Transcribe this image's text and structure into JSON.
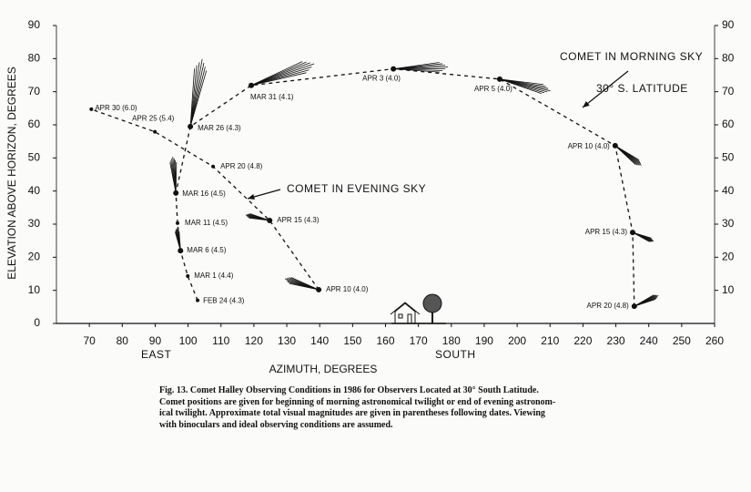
{
  "chart_data": {
    "type": "scatter",
    "x_label": "AZIMUTH, DEGREES",
    "y_label": "ELEVATION ABOVE HORIZON, DEGREES",
    "xlim": [
      60,
      260
    ],
    "xticks": [
      70,
      80,
      90,
      100,
      110,
      120,
      130,
      140,
      150,
      160,
      170,
      180,
      190,
      200,
      210,
      220,
      230,
      240,
      250,
      260
    ],
    "ylim": [
      0,
      90
    ],
    "yticks": [
      0,
      10,
      20,
      30,
      40,
      50,
      60,
      70,
      80,
      90
    ],
    "y2lim": [
      0,
      90
    ],
    "y2ticks": [
      10,
      20,
      30,
      40,
      50,
      60,
      70,
      80,
      90
    ],
    "line_style": "dashed",
    "color": "#111111",
    "series": [
      {
        "name": "COMET IN MORNING SKY",
        "x": [
          102.9,
          99.9,
          97.7,
          96.8,
          96.3,
          100.7,
          119.2,
          162.4,
          194.7,
          229.8,
          235.1,
          235.6
        ],
        "values": [
          7,
          14.3,
          22,
          30.3,
          39.4,
          59.5,
          71.9,
          76.9,
          73.8,
          53.7,
          27.5,
          5.2
        ],
        "point_labels": [
          "FEB 24 (4.3)",
          "MAR 1 (4.4)",
          "MAR 6 (4.5)",
          "MAR 11 (4.5)",
          "MAR 16 (4.5)",
          "MAR 26 (4.3)",
          "MAR 31 (4.1)",
          "APR 3 (4.0)",
          "APR 5 (4.0)",
          "APR 10 (4.0)",
          "APR 15 (4.3)",
          "APR 20 (4.8)"
        ]
      },
      {
        "name": "COMET IN EVENING SKY",
        "x": [
          139.7,
          124.8,
          107.6,
          89.9,
          70.6
        ],
        "values": [
          10.2,
          31.1,
          47.4,
          57.9,
          64.7
        ],
        "point_labels": [
          "APR 10 (4.0)",
          "APR 15 (4.3)",
          "APR 20 (4.8)",
          "APR 25 (5.4)",
          "APR 30 (6.0)"
        ]
      }
    ],
    "annotations": [
      "30° S. LATITUDE",
      "EAST",
      "SOUTH"
    ]
  },
  "caption": [
    "Fig. 13. Comet Halley Observing Conditions in 1986 for Observers Located at 30° South Latitude.",
    "Comet positions are given for beginning of morning astronomical twilight or end of evening astronom-",
    "ical twilight. Approximate total visual magnitudes are given in parentheses following dates. Viewing",
    "with binoculars and ideal observing conditions are assumed."
  ]
}
